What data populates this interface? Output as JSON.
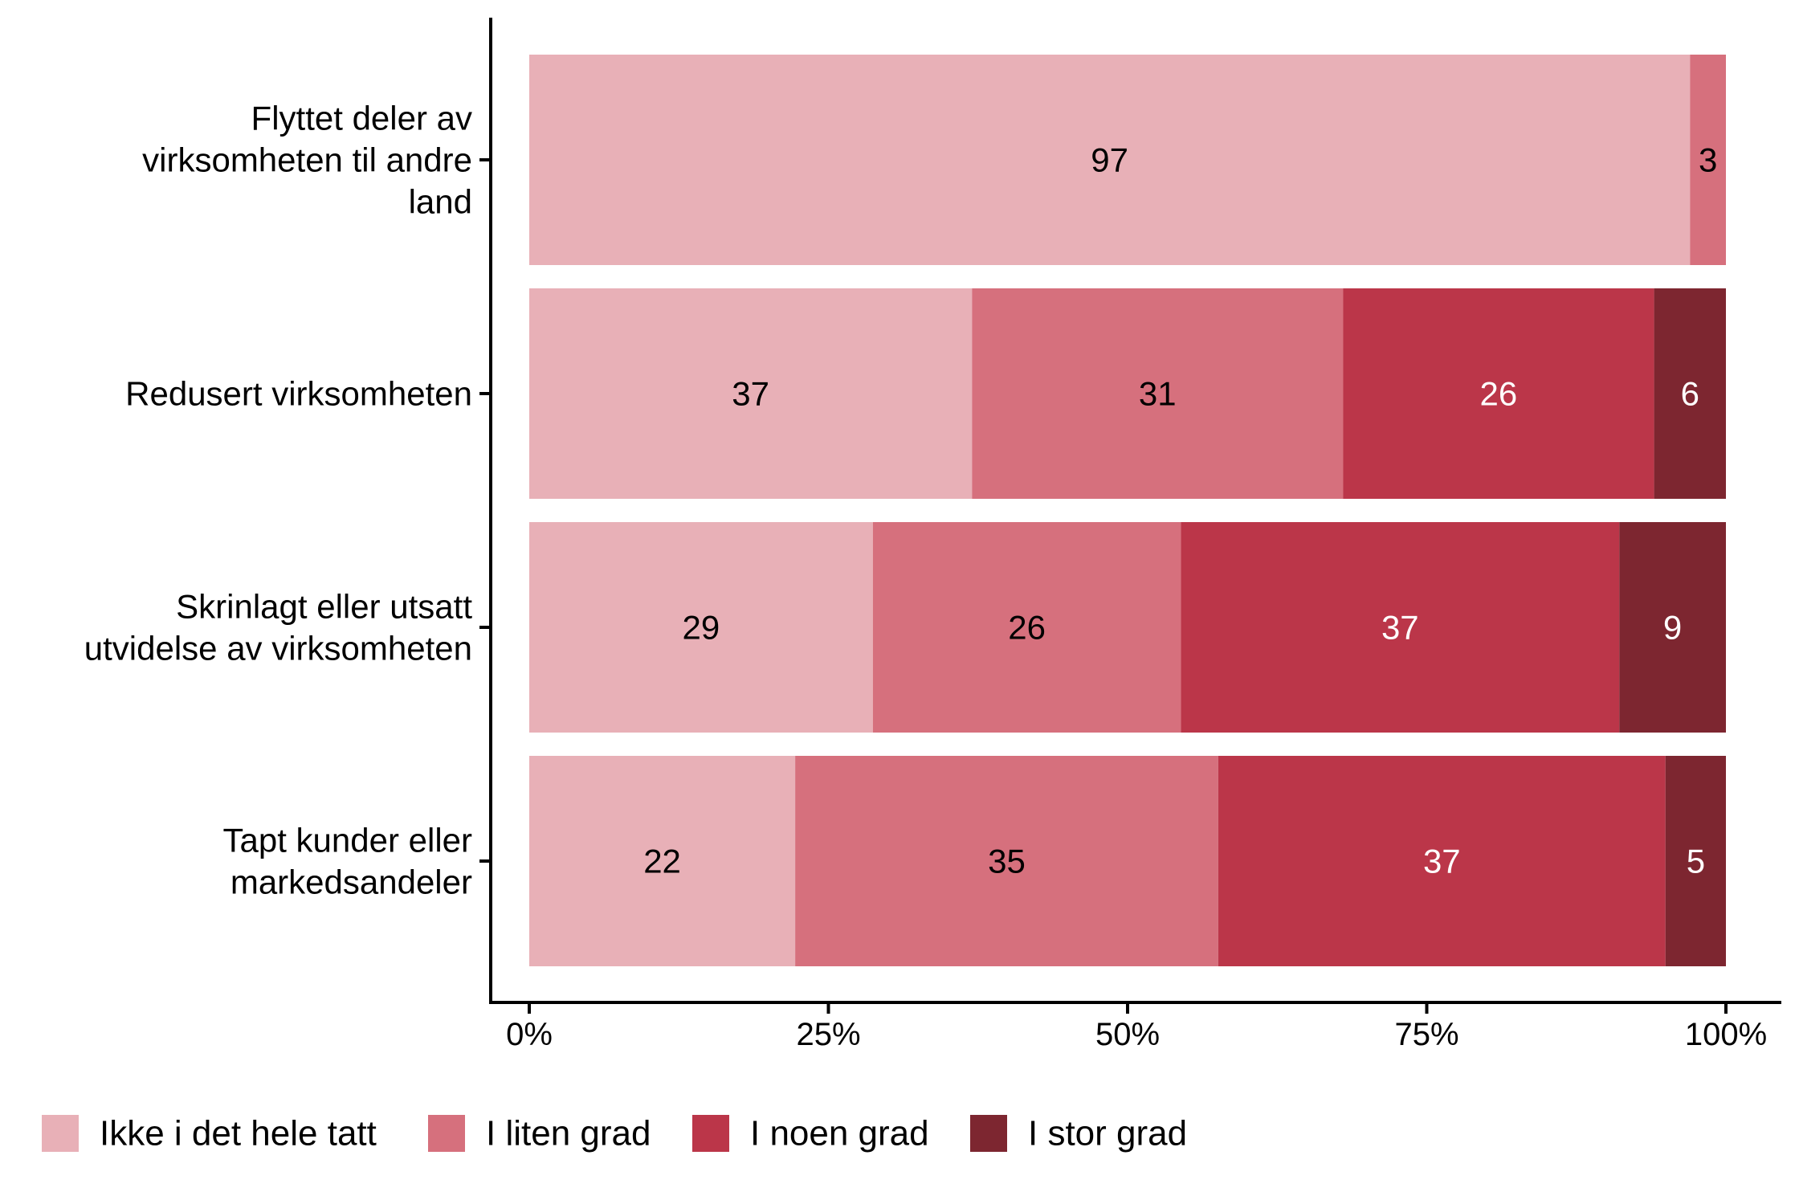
{
  "chart_data": {
    "type": "bar",
    "orientation": "horizontal",
    "stacked": "percent",
    "categories": [
      [
        "Flyttet deler av",
        "virksomheten til andre",
        "land"
      ],
      [
        "Redusert virksomheten"
      ],
      [
        "Skrinlagt eller utsatt",
        "utvidelse av virksomheten"
      ],
      [
        "Tapt kunder eller",
        "markedsandeler"
      ]
    ],
    "series": [
      {
        "name": "Ikke i det hele tatt",
        "color": "#e8b0b7",
        "label_color": "#000000",
        "values": [
          97,
          37,
          29,
          22
        ]
      },
      {
        "name": "I liten grad",
        "color": "#d6707d",
        "label_color": "#000000",
        "values": [
          3,
          31,
          26,
          35
        ]
      },
      {
        "name": "I noen grad",
        "color": "#bb3649",
        "label_color": "#ffffff",
        "values": [
          0,
          26,
          37,
          37
        ]
      },
      {
        "name": "I stor grad",
        "color": "#7d2630",
        "label_color": "#ffffff",
        "values": [
          0,
          6,
          9,
          5
        ]
      }
    ],
    "x_ticks": [
      "0%",
      "25%",
      "50%",
      "75%",
      "100%"
    ],
    "xlim": [
      0,
      100
    ],
    "title": "",
    "xlabel": "",
    "ylabel": "",
    "grid": false,
    "legend_position": "bottom"
  }
}
